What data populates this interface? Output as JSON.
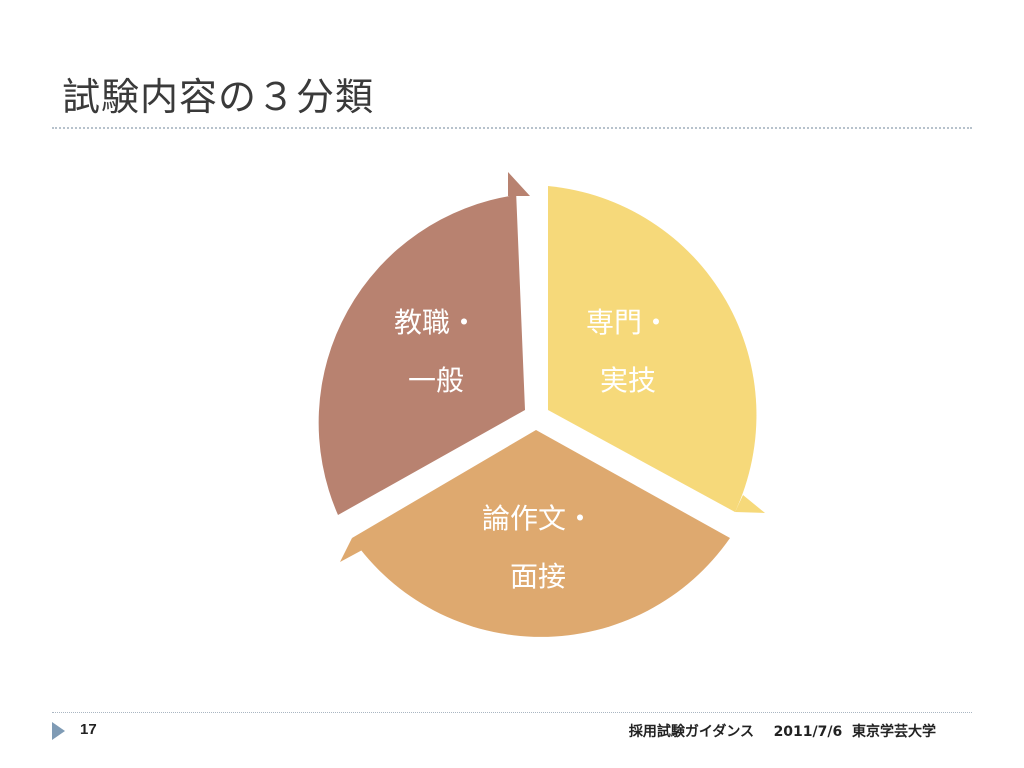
{
  "slide": {
    "title": "試験内容の３分類"
  },
  "diagram": {
    "segments": [
      {
        "line1": "教職・",
        "line2": "一般",
        "color": "#b88270"
      },
      {
        "line1": "専門・",
        "line2": "実技",
        "color": "#f6d97a"
      },
      {
        "line1": "論作文・",
        "line2": "面接",
        "color": "#dea96f"
      }
    ]
  },
  "footer": {
    "page_number": "17",
    "center_text": "採用試験ガイダンス",
    "date": "2011/7/6",
    "organization": "東京学芸大学"
  }
}
